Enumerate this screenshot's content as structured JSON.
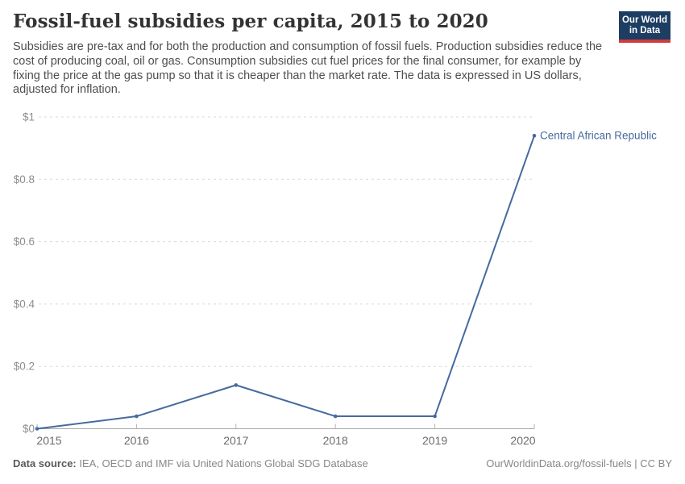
{
  "header": {
    "title": "Fossil-fuel subsidies per capita, 2015 to 2020",
    "subtitle": "Subsidies are pre-tax and for both the production and consumption of fossil fuels. Production subsidies reduce the cost of producing coal, oil or gas. Consumption subsidies cut fuel prices for the final consumer, for example by fixing the price at the gas pump so that it is cheaper than the market rate. The data is expressed in US dollars, adjusted for inflation.",
    "logo": {
      "line1": "Our World",
      "line2": "in Data",
      "bg_color": "#1d3d63",
      "stripe_color": "#cf3b3e"
    }
  },
  "chart_data": {
    "type": "line",
    "title": "Fossil-fuel subsidies per capita, 2015 to 2020",
    "x": [
      2015,
      2016,
      2017,
      2018,
      2019,
      2020
    ],
    "series": [
      {
        "name": "Central African Republic",
        "values": [
          0,
          0.04,
          0.14,
          0.04,
          0.04,
          0.94
        ],
        "color": "#466a9f"
      }
    ],
    "ylim": [
      0,
      1
    ],
    "ytick_values": [
      0,
      0.2,
      0.4,
      0.6,
      0.8,
      1
    ],
    "ytick_labels": [
      "$0",
      "$0.2",
      "$0.4",
      "$0.6",
      "$0.8",
      "$1"
    ],
    "xtick_labels": [
      "2015",
      "2016",
      "2017",
      "2018",
      "2019",
      "2020"
    ],
    "grid": "horizontal-dashed",
    "legend_position": "line-end-label"
  },
  "footer": {
    "source_label": "Data source:",
    "source_text": " IEA, OECD and IMF via United Nations Global SDG Database",
    "attribution": "OurWorldinData.org/fossil-fuels | CC BY"
  }
}
